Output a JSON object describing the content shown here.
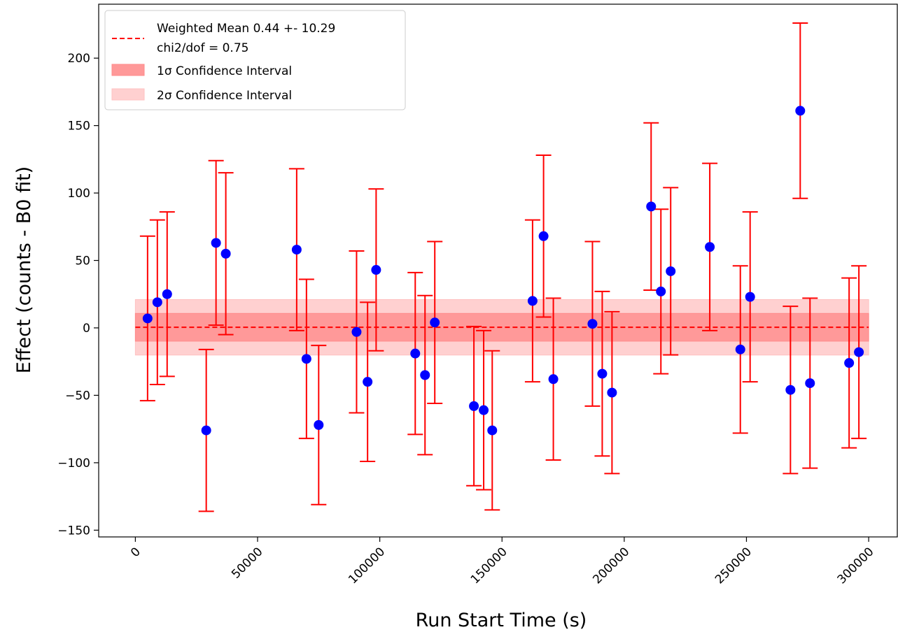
{
  "chart_data": {
    "type": "scatter",
    "xlabel": "Run Start Time (s)",
    "ylabel": "Effect (counts - B0 fit)",
    "xlim": [
      -15000,
      312000
    ],
    "ylim": [
      -155,
      240
    ],
    "x_ticks": [
      0,
      50000,
      100000,
      150000,
      200000,
      250000,
      300000
    ],
    "y_ticks": [
      -150,
      -100,
      -50,
      0,
      50,
      100,
      150,
      200
    ],
    "grid": false,
    "legend_position": "top-left",
    "legend": [
      {
        "key": "mean",
        "line1": "Weighted Mean 0.44 +- 10.29",
        "line2": "chi2/dof = 0.75"
      },
      {
        "key": "one_sigma",
        "label": "1σ Confidence Interval"
      },
      {
        "key": "two_sigma",
        "label": "2σ Confidence Interval"
      }
    ],
    "weighted_mean": {
      "value": 0.44,
      "x_range": [
        0,
        300000
      ]
    },
    "sigma1_band": [
      -9.85,
      10.73
    ],
    "sigma2_band": [
      -20.14,
      21.02
    ],
    "colors": {
      "points": "#0000ff",
      "errorbars": "#ff0000",
      "mean_line": "#ff0000",
      "band1": "#ff9999",
      "band2": "#ffd0d0"
    },
    "points": [
      {
        "x": 5000,
        "y": 7,
        "err": 61
      },
      {
        "x": 9000,
        "y": 19,
        "err": 61
      },
      {
        "x": 13000,
        "y": 25,
        "err": 61
      },
      {
        "x": 29000,
        "y": -76,
        "err": 60
      },
      {
        "x": 33000,
        "y": 63,
        "err": 61
      },
      {
        "x": 37000,
        "y": 55,
        "err": 60
      },
      {
        "x": 66000,
        "y": 58,
        "err": 60
      },
      {
        "x": 70000,
        "y": -23,
        "err": 59
      },
      {
        "x": 75000,
        "y": -72,
        "err": 59
      },
      {
        "x": 90500,
        "y": -3,
        "err": 60
      },
      {
        "x": 95000,
        "y": -40,
        "err": 59
      },
      {
        "x": 98500,
        "y": 43,
        "err": 60
      },
      {
        "x": 114500,
        "y": -19,
        "err": 60
      },
      {
        "x": 118500,
        "y": -35,
        "err": 59
      },
      {
        "x": 122500,
        "y": 4,
        "err": 60
      },
      {
        "x": 138500,
        "y": -58,
        "err": 59
      },
      {
        "x": 142500,
        "y": -61,
        "err": 59
      },
      {
        "x": 146000,
        "y": -76,
        "err": 59
      },
      {
        "x": 162500,
        "y": 20,
        "err": 60
      },
      {
        "x": 167000,
        "y": 68,
        "err": 60
      },
      {
        "x": 171000,
        "y": -38,
        "err": 60
      },
      {
        "x": 187000,
        "y": 3,
        "err": 61
      },
      {
        "x": 191000,
        "y": -34,
        "err": 61
      },
      {
        "x": 195000,
        "y": -48,
        "err": 60
      },
      {
        "x": 211000,
        "y": 90,
        "err": 62
      },
      {
        "x": 215000,
        "y": 27,
        "err": 61
      },
      {
        "x": 219000,
        "y": 42,
        "err": 62
      },
      {
        "x": 235000,
        "y": 60,
        "err": 62
      },
      {
        "x": 247500,
        "y": -16,
        "err": 62
      },
      {
        "x": 251500,
        "y": 23,
        "err": 63
      },
      {
        "x": 268000,
        "y": -46,
        "err": 62
      },
      {
        "x": 272000,
        "y": 161,
        "err": 65
      },
      {
        "x": 276000,
        "y": -41,
        "err": 63
      },
      {
        "x": 292000,
        "y": -26,
        "err": 63
      },
      {
        "x": 296000,
        "y": -18,
        "err": 64
      }
    ]
  }
}
